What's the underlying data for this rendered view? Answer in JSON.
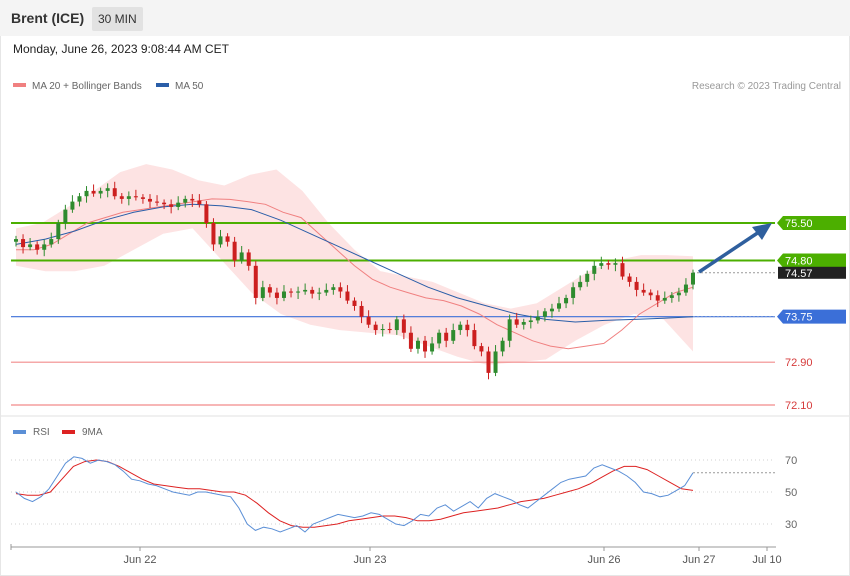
{
  "header": {
    "instrument": "Brent (ICE)",
    "timeframe": "30 MIN"
  },
  "timestamp": "Monday, June 26, 2023 9:08:44 AM CET",
  "legend": {
    "ma20": {
      "label": "MA 20 + Bollinger Bands",
      "color": "#f08080"
    },
    "ma50": {
      "label": "MA 50",
      "color": "#2a5ea8"
    }
  },
  "copyright": "Research © 2023 Trading Central",
  "colors": {
    "resistance": "#4caf00",
    "support": "#3b6fd8",
    "lower_levels": "#f28b8b",
    "last_price_bg": "#222222",
    "up_candle": "#2e8b2e",
    "down_candle": "#cc1f1f",
    "arrow": "#2f5f9e",
    "rsi": "#5b8fd6",
    "rsi_ma": "#dd2222"
  },
  "chart_data": [
    {
      "type": "candlestick",
      "title": "",
      "price_range": [
        72.1,
        75.8
      ],
      "x_ticks": [
        "Jun 22",
        "Jun 23",
        "Jun 26",
        "Jun 27",
        "Jul 10"
      ],
      "levels": [
        {
          "value": 75.5,
          "label": "75.50",
          "kind": "resistance"
        },
        {
          "value": 74.8,
          "label": "74.80",
          "kind": "resistance"
        },
        {
          "value": 74.57,
          "label": "74.57",
          "kind": "last"
        },
        {
          "value": 73.75,
          "label": "73.75",
          "kind": "support"
        },
        {
          "value": 72.9,
          "label": "72.90",
          "kind": "support_minor"
        },
        {
          "value": 72.1,
          "label": "72.10",
          "kind": "support_minor"
        }
      ],
      "close": [
        75.2,
        75.05,
        75.1,
        75.0,
        75.1,
        75.2,
        75.5,
        75.75,
        75.9,
        76.0,
        76.1,
        76.05,
        76.1,
        76.15,
        76.0,
        75.95,
        76.0,
        75.98,
        75.95,
        75.9,
        75.88,
        75.85,
        75.8,
        75.88,
        75.95,
        75.92,
        75.85,
        75.5,
        75.1,
        75.25,
        75.15,
        74.8,
        74.95,
        74.7,
        74.1,
        74.3,
        74.2,
        74.1,
        74.22,
        74.2,
        74.22,
        74.25,
        74.18,
        74.2,
        74.25,
        74.3,
        74.22,
        74.05,
        73.95,
        73.75,
        73.6,
        73.5,
        73.52,
        73.5,
        73.7,
        73.45,
        73.15,
        73.3,
        73.1,
        73.25,
        73.45,
        73.3,
        73.5,
        73.6,
        73.5,
        73.2,
        73.1,
        72.7,
        73.1,
        73.3,
        73.7,
        73.6,
        73.65,
        73.68,
        73.75,
        73.85,
        73.9,
        74.0,
        74.1,
        74.3,
        74.4,
        74.55,
        74.7,
        74.75,
        74.72,
        74.75,
        74.5,
        74.4,
        74.25,
        74.2,
        74.15,
        74.05,
        74.1,
        74.15,
        74.2,
        74.35,
        74.57
      ],
      "ma20": [
        75.0,
        75.0,
        75.1,
        75.3,
        75.5,
        75.6,
        75.7,
        75.75,
        75.8,
        75.85,
        75.9,
        75.95,
        75.94,
        75.9,
        75.85,
        75.7,
        75.6,
        75.3,
        75.0,
        74.7,
        74.45,
        74.3,
        74.2,
        74.1,
        74.05,
        73.95,
        73.8,
        73.6,
        73.45,
        73.3,
        73.2,
        73.15,
        73.2,
        73.25,
        73.5,
        73.8,
        74.0,
        74.2,
        74.3
      ],
      "ma50": [
        75.1,
        75.2,
        75.35,
        75.55,
        75.7,
        75.8,
        75.85,
        75.82,
        75.75,
        75.55,
        75.3,
        75.05,
        74.8,
        74.55,
        74.3,
        74.1,
        73.95,
        73.8,
        73.7,
        73.65,
        73.68,
        73.7,
        73.72,
        73.75
      ],
      "bb_upper": [
        75.4,
        75.5,
        75.8,
        76.1,
        76.45,
        76.6,
        76.5,
        76.3,
        76.2,
        76.4,
        76.5,
        76.1,
        75.5,
        75.0,
        74.6,
        74.5,
        74.4,
        74.2,
        74.0,
        73.9,
        74.0,
        74.3,
        74.6,
        74.8,
        74.9,
        74.9,
        74.88
      ],
      "bb_lower": [
        74.7,
        74.6,
        74.6,
        74.7,
        75.0,
        75.3,
        75.4,
        74.8,
        74.2,
        73.8,
        73.6,
        73.5,
        73.45,
        73.4,
        73.2,
        73.0,
        72.85,
        72.9,
        72.95,
        73.3,
        73.6,
        73.8,
        73.7,
        73.1
      ]
    },
    {
      "type": "line",
      "title": "",
      "series": [
        {
          "name": "RSI",
          "values": [
            50,
            46,
            44,
            47,
            52,
            60,
            68,
            72,
            71,
            68,
            70,
            69,
            67,
            63,
            58,
            57,
            55,
            54,
            52,
            50,
            49,
            48,
            50,
            50,
            49,
            48,
            47,
            40,
            30,
            26,
            28,
            27,
            25,
            27,
            29,
            25,
            30,
            32,
            34,
            36,
            35,
            34,
            35,
            37,
            36,
            33,
            30,
            29,
            32,
            36,
            35,
            40,
            42,
            38,
            41,
            44,
            40,
            46,
            49,
            47,
            45,
            42,
            40,
            44,
            48,
            52,
            56,
            58,
            59,
            60,
            65,
            67,
            65,
            63,
            60,
            56,
            50,
            49,
            47,
            48,
            51,
            54,
            62
          ]
        },
        {
          "name": "9MA",
          "values": [
            49,
            48,
            48,
            50,
            58,
            66,
            69,
            70,
            69,
            66,
            62,
            58,
            55,
            54,
            53,
            52,
            52,
            51,
            50,
            50,
            48,
            43,
            37,
            32,
            29,
            28,
            28,
            29,
            30,
            32,
            33,
            34,
            35,
            35,
            34,
            32,
            32,
            33,
            35,
            37,
            38,
            39,
            40,
            42,
            44,
            45,
            46,
            48,
            50,
            52,
            55,
            59,
            63,
            66,
            66,
            64,
            60,
            56,
            52,
            51
          ]
        }
      ],
      "y_ticks": [
        "70",
        "50",
        "30"
      ],
      "ylim": [
        20,
        80
      ]
    }
  ]
}
